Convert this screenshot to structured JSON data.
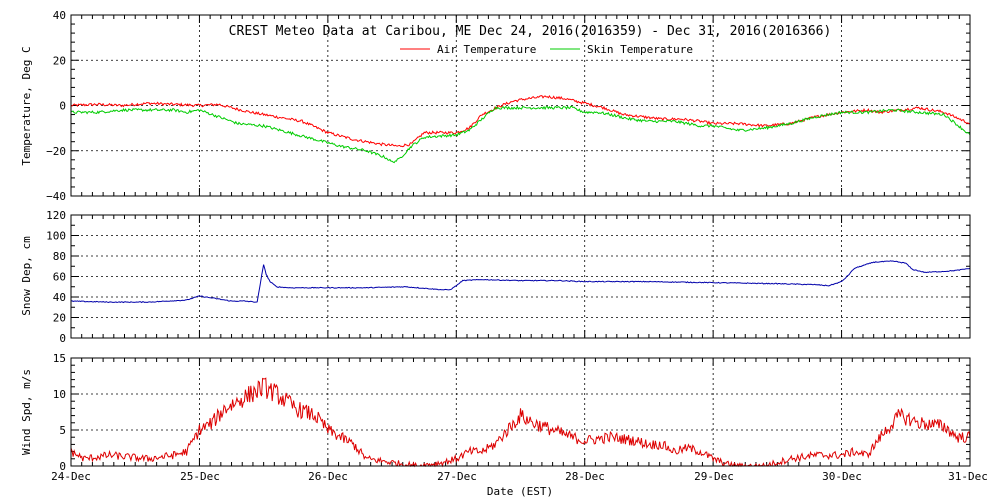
{
  "chart_data": {
    "title": "CREST Meteo Data at Caribou, ME   Dec 24, 2016(2016359) - Dec 31, 2016(2016366)",
    "xlabel": "Date (EST)",
    "x_ticks": [
      "24-Dec",
      "25-Dec",
      "26-Dec",
      "27-Dec",
      "28-Dec",
      "29-Dec",
      "30-Dec",
      "31-Dec"
    ],
    "x_range_days": [
      0,
      7
    ],
    "panels": [
      {
        "type": "line",
        "ylabel": "Temperature, Deg C",
        "ylim": [
          -40,
          40
        ],
        "yticks": [
          "40",
          "20",
          "0",
          "−20",
          "−40"
        ],
        "grid": true,
        "legend_position": "top",
        "series": [
          {
            "name": "Air Temperature",
            "color": "#ff0000",
            "points": [
              [
                0,
                0
              ],
              [
                0.2,
                0.5
              ],
              [
                0.4,
                0
              ],
              [
                0.6,
                1
              ],
              [
                0.8,
                0.5
              ],
              [
                1.0,
                0
              ],
              [
                1.15,
                0.5
              ],
              [
                1.25,
                -1
              ],
              [
                1.4,
                -3
              ],
              [
                1.6,
                -5
              ],
              [
                1.8,
                -7
              ],
              [
                2.0,
                -12
              ],
              [
                2.2,
                -15
              ],
              [
                2.4,
                -17
              ],
              [
                2.55,
                -18
              ],
              [
                2.65,
                -17
              ],
              [
                2.75,
                -12
              ],
              [
                2.85,
                -12
              ],
              [
                3.0,
                -12
              ],
              [
                3.1,
                -10
              ],
              [
                3.2,
                -4
              ],
              [
                3.35,
                0
              ],
              [
                3.45,
                2
              ],
              [
                3.55,
                3
              ],
              [
                3.7,
                4
              ],
              [
                3.85,
                3
              ],
              [
                4.0,
                1
              ],
              [
                4.15,
                -1
              ],
              [
                4.3,
                -4
              ],
              [
                4.45,
                -5
              ],
              [
                4.6,
                -6
              ],
              [
                4.75,
                -6
              ],
              [
                4.9,
                -7
              ],
              [
                5.0,
                -8
              ],
              [
                5.2,
                -8
              ],
              [
                5.4,
                -9
              ],
              [
                5.6,
                -8
              ],
              [
                5.8,
                -5
              ],
              [
                6.0,
                -3
              ],
              [
                6.2,
                -2
              ],
              [
                6.3,
                -3
              ],
              [
                6.45,
                -2
              ],
              [
                6.6,
                -1
              ],
              [
                6.8,
                -3
              ],
              [
                7.0,
                -8
              ]
            ]
          },
          {
            "name": "Skin Temperature",
            "color": "#00cc00",
            "points": [
              [
                0,
                -3
              ],
              [
                0.2,
                -3
              ],
              [
                0.4,
                -2
              ],
              [
                0.6,
                -2
              ],
              [
                0.8,
                -2
              ],
              [
                0.9,
                -3
              ],
              [
                1.0,
                -2
              ],
              [
                1.1,
                -4
              ],
              [
                1.2,
                -6
              ],
              [
                1.3,
                -8
              ],
              [
                1.5,
                -9
              ],
              [
                1.7,
                -12
              ],
              [
                1.9,
                -15
              ],
              [
                2.1,
                -18
              ],
              [
                2.3,
                -20
              ],
              [
                2.45,
                -23
              ],
              [
                2.5,
                -25
              ],
              [
                2.55,
                -24
              ],
              [
                2.65,
                -18
              ],
              [
                2.75,
                -14
              ],
              [
                3.0,
                -13
              ],
              [
                3.1,
                -11
              ],
              [
                3.2,
                -6
              ],
              [
                3.3,
                -1
              ],
              [
                3.5,
                -1
              ],
              [
                3.7,
                -1
              ],
              [
                3.9,
                -1
              ],
              [
                4.0,
                -3
              ],
              [
                4.1,
                -3
              ],
              [
                4.2,
                -4
              ],
              [
                4.35,
                -6
              ],
              [
                4.5,
                -7
              ],
              [
                4.7,
                -7
              ],
              [
                4.9,
                -9
              ],
              [
                5.0,
                -9
              ],
              [
                5.2,
                -11
              ],
              [
                5.4,
                -10
              ],
              [
                5.6,
                -8
              ],
              [
                5.8,
                -5
              ],
              [
                6.0,
                -3
              ],
              [
                6.2,
                -3
              ],
              [
                6.4,
                -2
              ],
              [
                6.6,
                -3
              ],
              [
                6.8,
                -4
              ],
              [
                7.0,
                -13
              ]
            ]
          }
        ]
      },
      {
        "type": "line",
        "ylabel": "Snow Dep, cm",
        "ylim": [
          0,
          120
        ],
        "yticks": [
          "120",
          "100",
          "80",
          "60",
          "40",
          "20",
          "0"
        ],
        "grid": true,
        "series": [
          {
            "color": "#0000aa",
            "points": [
              [
                0,
                36
              ],
              [
                0.3,
                35
              ],
              [
                0.6,
                35
              ],
              [
                0.9,
                37
              ],
              [
                1.0,
                41
              ],
              [
                1.1,
                39
              ],
              [
                1.25,
                36
              ],
              [
                1.35,
                36
              ],
              [
                1.45,
                35
              ],
              [
                1.47,
                50
              ],
              [
                1.5,
                72
              ],
              [
                1.52,
                62
              ],
              [
                1.55,
                55
              ],
              [
                1.6,
                50
              ],
              [
                1.7,
                49
              ],
              [
                2.0,
                49
              ],
              [
                2.3,
                49
              ],
              [
                2.6,
                50
              ],
              [
                2.8,
                48
              ],
              [
                2.9,
                47
              ],
              [
                2.95,
                47
              ],
              [
                3.0,
                51
              ],
              [
                3.05,
                56
              ],
              [
                3.2,
                57
              ],
              [
                3.5,
                56
              ],
              [
                3.8,
                56
              ],
              [
                4.0,
                55
              ],
              [
                4.5,
                55
              ],
              [
                5.0,
                54
              ],
              [
                5.5,
                53
              ],
              [
                5.8,
                52
              ],
              [
                5.9,
                51
              ],
              [
                6.0,
                55
              ],
              [
                6.05,
                61
              ],
              [
                6.1,
                68
              ],
              [
                6.25,
                74
              ],
              [
                6.4,
                75
              ],
              [
                6.5,
                73
              ],
              [
                6.55,
                67
              ],
              [
                6.65,
                64
              ],
              [
                6.8,
                65
              ],
              [
                6.9,
                66
              ],
              [
                7.0,
                68
              ]
            ]
          }
        ]
      },
      {
        "type": "line",
        "ylabel": "Wind Spd, m/s",
        "ylim": [
          0,
          15
        ],
        "yticks": [
          "15",
          "10",
          "5",
          "0"
        ],
        "grid": true,
        "series": [
          {
            "color": "#dd0000",
            "points": [
              [
                0,
                2
              ],
              [
                0.1,
                1
              ],
              [
                0.3,
                1.5
              ],
              [
                0.6,
                1
              ],
              [
                0.8,
                1.5
              ],
              [
                0.9,
                2
              ],
              [
                1.0,
                5
              ],
              [
                1.1,
                6
              ],
              [
                1.2,
                8
              ],
              [
                1.3,
                9
              ],
              [
                1.4,
                10
              ],
              [
                1.5,
                11
              ],
              [
                1.6,
                10
              ],
              [
                1.75,
                8
              ],
              [
                1.9,
                7
              ],
              [
                2.0,
                5
              ],
              [
                2.1,
                4
              ],
              [
                2.2,
                3
              ],
              [
                2.3,
                1
              ],
              [
                2.5,
                0.5
              ],
              [
                2.7,
                0
              ],
              [
                2.9,
                0.5
              ],
              [
                3.0,
                1
              ],
              [
                3.1,
                2
              ],
              [
                3.2,
                2
              ],
              [
                3.3,
                3
              ],
              [
                3.4,
                5
              ],
              [
                3.5,
                7
              ],
              [
                3.6,
                6
              ],
              [
                3.75,
                5
              ],
              [
                3.9,
                4
              ],
              [
                4.0,
                3.5
              ],
              [
                4.2,
                4
              ],
              [
                4.4,
                3.5
              ],
              [
                4.5,
                3
              ],
              [
                4.6,
                3
              ],
              [
                4.7,
                2
              ],
              [
                4.8,
                2.5
              ],
              [
                4.9,
                2
              ],
              [
                5.0,
                1
              ],
              [
                5.1,
                0.3
              ],
              [
                5.2,
                0
              ],
              [
                5.4,
                0
              ],
              [
                5.6,
                1
              ],
              [
                5.8,
                1.5
              ],
              [
                6.0,
                1.5
              ],
              [
                6.1,
                2
              ],
              [
                6.2,
                1.5
              ],
              [
                6.3,
                4
              ],
              [
                6.35,
                5
              ],
              [
                6.45,
                7
              ],
              [
                6.6,
                6
              ],
              [
                6.8,
                5.5
              ],
              [
                6.9,
                4
              ],
              [
                7.0,
                4
              ]
            ]
          }
        ]
      }
    ]
  }
}
